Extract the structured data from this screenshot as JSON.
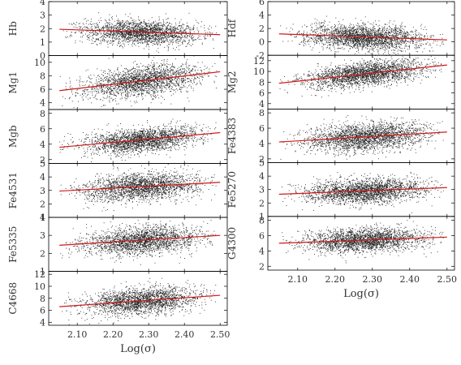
{
  "chart_data": {
    "type": "scatter",
    "x_axis_label": "Log(σ)",
    "x_ticks": [
      "2.10",
      "2.20",
      "2.30",
      "2.40",
      "2.50"
    ],
    "xlim": [
      2.02,
      2.52
    ],
    "columns": [
      {
        "name": "left",
        "panels": [
          {
            "ylabel": "Hb",
            "ylim": [
              0,
              4
            ],
            "yticks": [
              "0",
              "1",
              "2",
              "3",
              "4"
            ],
            "fit": [
              [
                2.05,
                1.95
              ],
              [
                2.5,
                1.55
              ]
            ],
            "x_center": 2.28,
            "x_sd": 0.08,
            "y_sd": 0.45,
            "n_points": 2200
          },
          {
            "ylabel": "Mg1",
            "ylim": [
              3,
              11
            ],
            "yticks": [
              "4",
              "6",
              "8",
              "10"
            ],
            "fit": [
              [
                2.05,
                5.8
              ],
              [
                2.5,
                8.6
              ]
            ],
            "x_center": 2.28,
            "x_sd": 0.08,
            "y_sd": 1.1,
            "n_points": 2200
          },
          {
            "ylabel": "Mgb",
            "ylim": [
              1.5,
              8.5
            ],
            "yticks": [
              "2",
              "4",
              "6",
              "8"
            ],
            "fit": [
              [
                2.05,
                3.6
              ],
              [
                2.5,
                5.5
              ]
            ],
            "x_center": 2.28,
            "x_sd": 0.08,
            "y_sd": 0.75,
            "n_points": 2200
          },
          {
            "ylabel": "Fe4531",
            "ylim": [
              1,
              5
            ],
            "yticks": [
              "1",
              "2",
              "3",
              "4",
              "5"
            ],
            "fit": [
              [
                2.05,
                2.95
              ],
              [
                2.5,
                3.6
              ]
            ],
            "x_center": 2.28,
            "x_sd": 0.08,
            "y_sd": 0.5,
            "n_points": 2200
          },
          {
            "ylabel": "Fe5335",
            "ylim": [
              1,
              4
            ],
            "yticks": [
              "1",
              "2",
              "3",
              "4"
            ],
            "fit": [
              [
                2.05,
                2.45
              ],
              [
                2.5,
                3.0
              ]
            ],
            "x_center": 2.28,
            "x_sd": 0.08,
            "y_sd": 0.38,
            "n_points": 2200
          },
          {
            "ylabel": "C4668",
            "ylim": [
              3.5,
              12.5
            ],
            "yticks": [
              "4",
              "6",
              "8",
              "10",
              "12"
            ],
            "fit": [
              [
                2.05,
                6.6
              ],
              [
                2.5,
                8.5
              ]
            ],
            "x_center": 2.28,
            "x_sd": 0.08,
            "y_sd": 1.1,
            "n_points": 2200
          }
        ]
      },
      {
        "name": "right",
        "panels": [
          {
            "ylabel": "Hdf",
            "ylim": [
              -2,
              6
            ],
            "yticks": [
              "-2",
              "0",
              "2",
              "4",
              "6"
            ],
            "fit": [
              [
                2.05,
                1.2
              ],
              [
                2.5,
                0.3
              ]
            ],
            "x_center": 2.28,
            "x_sd": 0.08,
            "y_sd": 0.9,
            "n_points": 2400
          },
          {
            "ylabel": "Mg2",
            "ylim": [
              3,
              13
            ],
            "yticks": [
              "4",
              "6",
              "8",
              "10",
              "12"
            ],
            "fit": [
              [
                2.05,
                7.8
              ],
              [
                2.5,
                11.2
              ]
            ],
            "x_center": 2.28,
            "x_sd": 0.08,
            "y_sd": 1.1,
            "n_points": 2400
          },
          {
            "ylabel": "Fe4383",
            "ylim": [
              1.5,
              8.5
            ],
            "yticks": [
              "2",
              "4",
              "6",
              "8"
            ],
            "fit": [
              [
                2.05,
                4.2
              ],
              [
                2.5,
                5.5
              ]
            ],
            "x_center": 2.28,
            "x_sd": 0.08,
            "y_sd": 0.9,
            "n_points": 2400
          },
          {
            "ylabel": "Fe5270",
            "ylim": [
              1,
              5
            ],
            "yticks": [
              "1",
              "2",
              "3",
              "4",
              "5"
            ],
            "fit": [
              [
                2.05,
                2.65
              ],
              [
                2.5,
                3.15
              ]
            ],
            "x_center": 2.28,
            "x_sd": 0.08,
            "y_sd": 0.45,
            "n_points": 2400
          },
          {
            "ylabel": "G4300",
            "ylim": [
              1.5,
              8.5
            ],
            "yticks": [
              "2",
              "4",
              "6",
              "8"
            ],
            "fit": [
              [
                2.05,
                5.0
              ],
              [
                2.5,
                5.8
              ]
            ],
            "x_center": 2.28,
            "x_sd": 0.08,
            "y_sd": 0.75,
            "n_points": 2400
          }
        ]
      }
    ]
  }
}
